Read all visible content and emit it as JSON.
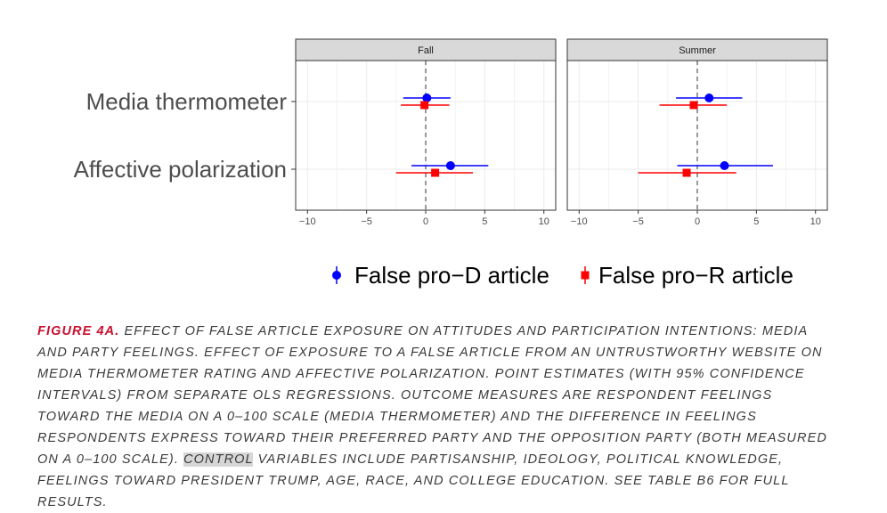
{
  "chart_data": {
    "type": "scatter",
    "subtype": "coefficient-plot-with-95-ci",
    "panels": [
      "Fall",
      "Summer"
    ],
    "categories": [
      "Media thermometer",
      "Affective polarization"
    ],
    "xlim": [
      -11,
      11
    ],
    "x_ticks": [
      -10,
      -5,
      0,
      5,
      10
    ],
    "x_tick_labels": [
      "−10",
      "−5",
      "0",
      "5",
      "10"
    ],
    "reference_line_x": 0,
    "grid": true,
    "legend_position": "bottom",
    "series": [
      {
        "name": "False pro−D article",
        "color": "#0000ff",
        "marker": "circle",
        "data": {
          "Fall": [
            {
              "category": "Media thermometer",
              "estimate": 0.1,
              "lower": -1.9,
              "upper": 2.1
            },
            {
              "category": "Affective polarization",
              "estimate": 2.1,
              "lower": -1.2,
              "upper": 5.3
            }
          ],
          "Summer": [
            {
              "category": "Media thermometer",
              "estimate": 1.0,
              "lower": -1.8,
              "upper": 3.8
            },
            {
              "category": "Affective polarization",
              "estimate": 2.3,
              "lower": -1.7,
              "upper": 6.4
            }
          ]
        }
      },
      {
        "name": "False pro−R article",
        "color": "#ff0000",
        "marker": "square",
        "data": {
          "Fall": [
            {
              "category": "Media thermometer",
              "estimate": -0.1,
              "lower": -2.1,
              "upper": 2.0
            },
            {
              "category": "Affective polarization",
              "estimate": 0.8,
              "lower": -2.5,
              "upper": 4.0
            }
          ],
          "Summer": [
            {
              "category": "Media thermometer",
              "estimate": -0.3,
              "lower": -3.2,
              "upper": 2.5
            },
            {
              "category": "Affective polarization",
              "estimate": -0.9,
              "lower": -5.0,
              "upper": 3.3
            }
          ]
        }
      }
    ]
  },
  "caption": {
    "label": "FIGURE 4A.",
    "text_before_highlight": " EFFECT OF FALSE ARTICLE EXPOSURE ON ATTITUDES AND PARTICIPATION INTENTIONS: MEDIA AND PARTY FEELINGS. EFFECT OF EXPOSURE TO A FALSE ARTICLE FROM AN UNTRUSTWORTHY WEBSITE ON MEDIA THERMOMETER RATING AND AFFECTIVE POLARIZATION. POINT ESTIMATES (WITH 95% CONFIDENCE INTERVALS) FROM SEPARATE OLS REGRESSIONS. OUTCOME MEASURES ARE RESPONDENT FEELINGS TOWARD THE MEDIA ON A 0–100 SCALE (MEDIA THERMOMETER) AND THE DIFFERENCE IN FEELINGS RESPONDENTS EXPRESS TOWARD THEIR PREFERRED PARTY AND THE OPPOSITION PARTY (BOTH MEASURED ON A 0–100 SCALE). ",
    "highlight": "CONTROL",
    "text_after_highlight": " VARIABLES INCLUDE PARTISANSHIP, IDEOLOGY, POLITICAL KNOWLEDGE, FEELINGS TOWARD PRESIDENT TRUMP, AGE, RACE, AND COLLEGE EDUCATION. SEE TABLE B6 FOR FULL RESULTS."
  }
}
